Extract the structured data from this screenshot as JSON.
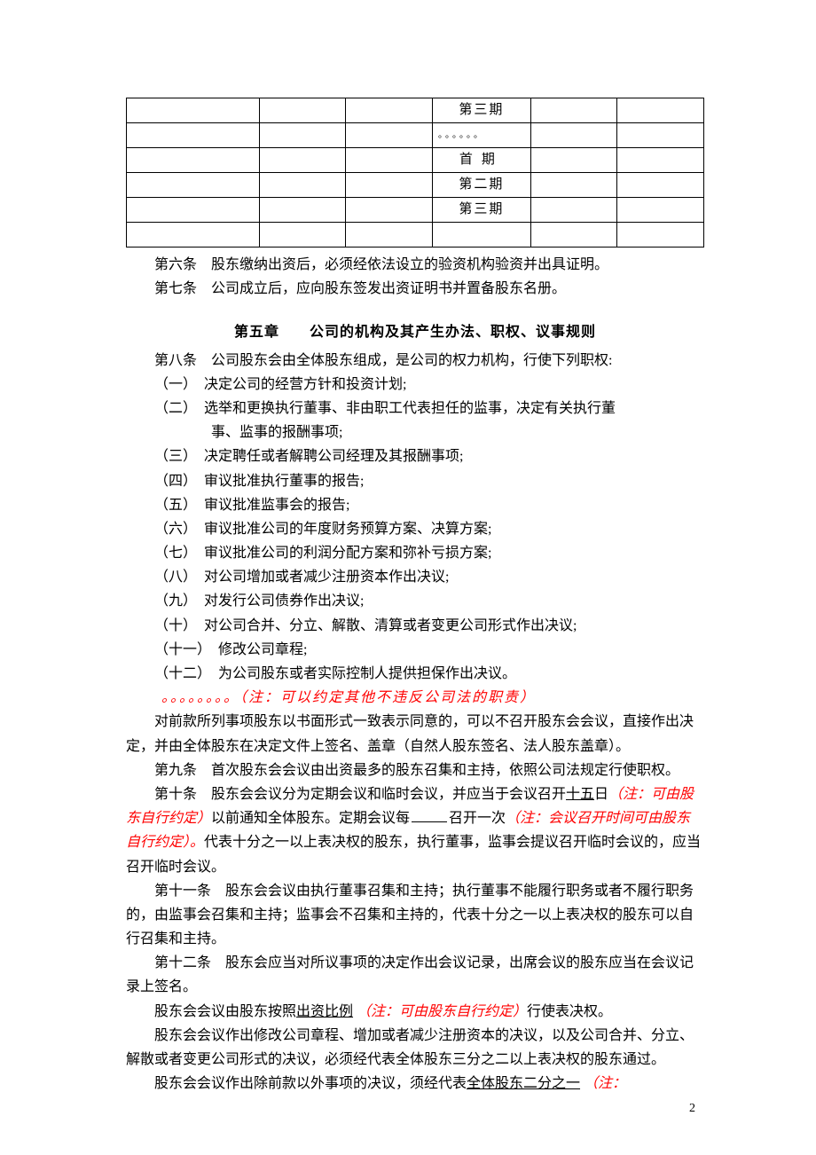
{
  "table": {
    "rows": [
      {
        "c4": "第三期"
      },
      {
        "c4": "。。。。。。",
        "ellipsis": true
      },
      {
        "c4": "首期",
        "spaced": true
      },
      {
        "c4": "第二期"
      },
      {
        "c4": "第三期"
      },
      {
        "c4": ""
      }
    ]
  },
  "article6": "第六条　股东缴纳出资后，必须经依法设立的验资机构验资并出具证明。",
  "article7": "第七条　公司成立后，应向股东签发出资证明书并置备股东名册。",
  "chapter5_title": "第五章　　公司的机构及其产生办法、职权、议事规则",
  "article8_intro": "第八条　公司股东会由全体股东组成，是公司的权力机构，行使下列职权:",
  "items8": [
    "（一）　决定公司的经营方针和投资计划;",
    "（二）　选举和更换执行董事、非由职工代表担任的监事，决定有关执行董",
    "　　　　事、监事的报酬事项;",
    "（三）　决定聘任或者解聘公司经理及其报酬事项;",
    "（四）　审议批准执行董事的报告;",
    "（五）　审议批准监事会的报告;",
    "（六）　审议批准公司的年度财务预算方案、决算方案;",
    "（七）　审议批准公司的利润分配方案和弥补亏损方案;",
    "（八）　对公司增加或者减少注册资本作出决议;",
    "（九）　对发行公司债券作出决议;",
    "（十）　对公司合并、分立、解散、清算或者变更公司形式作出决议;",
    "（十一）　修改公司章程;",
    "（十二）　为公司股东或者实际控制人提供担保作出决议。"
  ],
  "note8": "。。。。。。。。（注：可以约定其他不违反公司法的职责）",
  "para_after8_1": "对前款所列事项股东以书面形式一致表示同意的，可以不召开股东会会议，直接作出决定，并由全体股东在决定文件上签名、盖章（自然人股东签名、法人股东盖章）。",
  "article9": "第九条　首次股东会会议由出资最多的股东召集和主持，依照公司法规定行使职权。",
  "article10": {
    "p1a": "第十条　股东会会议分为定期会议和临时会议，并应当于会议召开",
    "p1_u": "十五",
    "p1b": "日",
    "n1": "（注：可由股东自行约定）",
    "p2a": "以前通知全体股东。定期会议每",
    "p2b": "召开一次",
    "n2": "（注：会议召开时间可由股东自行约定）",
    "p3": "代表十分之一以上表决权的股东，执行董事，监事会提议召开临时会议的，应当召开临时会议。"
  },
  "article11": "第十一条　股东会会议由执行董事召集和主持；执行董事不能履行职务或者不履行职务的，由监事会召集和主持；监事会不召集和主持的，代表十分之一以上表决权的股东可以自行召集和主持。",
  "article12": "第十二条　股东会应当对所议事项的决定作出会议记录，出席会议的股东应当在会议记录上签名。",
  "para_vote": {
    "a": "股东会会议由股东按照",
    "u": "出资比例",
    "n": "（注：可由股东自行约定）",
    "b": "行使表决权。"
  },
  "para_amend": "股东会会议作出修改公司章程、增加或者减少注册资本的决议，以及公司合并、分立、解散或者变更公司形式的决议，必须经代表全体股东三分之二以上表决权的股东通过。",
  "para_other": {
    "a": "股东会会议作出除前款以外事项的决议，须经代表",
    "u": "全体股东二分之一",
    "n": "（注："
  },
  "page_num": "2"
}
